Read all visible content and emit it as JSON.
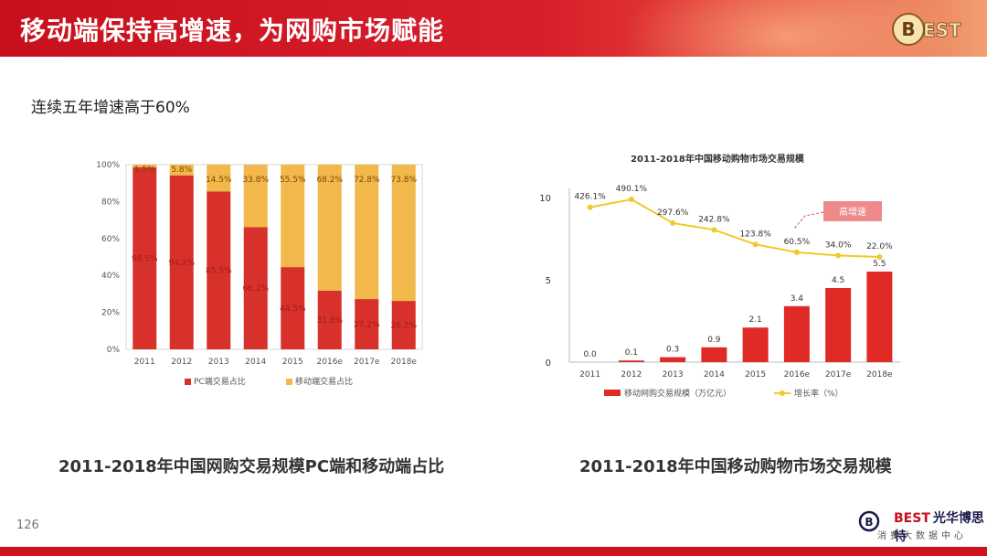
{
  "header": {
    "title": "移动端保持高增速，为网购市场赋能",
    "logo_text": "BEST"
  },
  "subtitle": "连续五年增速高于60%",
  "captions": {
    "left": "2011-2018年中国网购交易规模PC端和移动端占比",
    "right": "2011-2018年中国移动购物市场交易规模"
  },
  "page_number": "126",
  "footer": {
    "logo_text": "BEST",
    "brand": "光华博思特",
    "sub": "消费大数据中心"
  },
  "colors": {
    "red": "#d8302a",
    "yellow": "#f2b84b",
    "line": "#f0c92a",
    "header": "#d0121e"
  },
  "chart_data": [
    {
      "type": "bar",
      "stacked": true,
      "categories": [
        "2011",
        "2012",
        "2013",
        "2014",
        "2015",
        "2016e",
        "2017e",
        "2018e"
      ],
      "series": [
        {
          "name": "PC端交易占比",
          "values": [
            98.5,
            94.2,
            85.5,
            66.2,
            44.5,
            31.8,
            27.2,
            26.2
          ],
          "labels": [
            "98.5%",
            "94.2%",
            "85.5%",
            "66.2%",
            "44.5%",
            "31.8%",
            "27.2%",
            "26.2%"
          ]
        },
        {
          "name": "移动端交易占比",
          "values": [
            1.5,
            5.8,
            14.5,
            33.8,
            55.5,
            68.2,
            72.8,
            73.8
          ],
          "labels": [
            "1.5%",
            "5.8%",
            "14.5%",
            "33.8%",
            "55.5%",
            "68.2%",
            "72.8%",
            "73.8%"
          ]
        }
      ],
      "yticks": [
        "0%",
        "20%",
        "40%",
        "60%",
        "80%",
        "100%"
      ],
      "ylim": [
        0,
        100
      ]
    },
    {
      "type": "bar+line",
      "title": "2011-2018年中国移动购物市场交易规模",
      "categories": [
        "2011",
        "2012",
        "2013",
        "2014",
        "2015",
        "2016e",
        "2017e",
        "2018e"
      ],
      "bars": {
        "name": "移动网购交易规模（万亿元）",
        "values": [
          0.0,
          0.1,
          0.3,
          0.9,
          2.1,
          3.4,
          4.5,
          5.5
        ],
        "labels": [
          "0.0",
          "0.1",
          "0.3",
          "0.9",
          "2.1",
          "3.4",
          "4.5",
          "5.5"
        ]
      },
      "line": {
        "name": "增长率（%）",
        "values": [
          426.1,
          490.1,
          297.6,
          242.8,
          123.8,
          60.5,
          34.0,
          22.0
        ],
        "labels": [
          "426.1%",
          "490.1%",
          "297.6%",
          "242.8%",
          "123.8%",
          "60.5%",
          "34.0%",
          "22.0%"
        ]
      },
      "yticks": [
        "0",
        "5",
        "10"
      ],
      "ylim": [
        0,
        10
      ],
      "annotation": "高增速"
    }
  ]
}
